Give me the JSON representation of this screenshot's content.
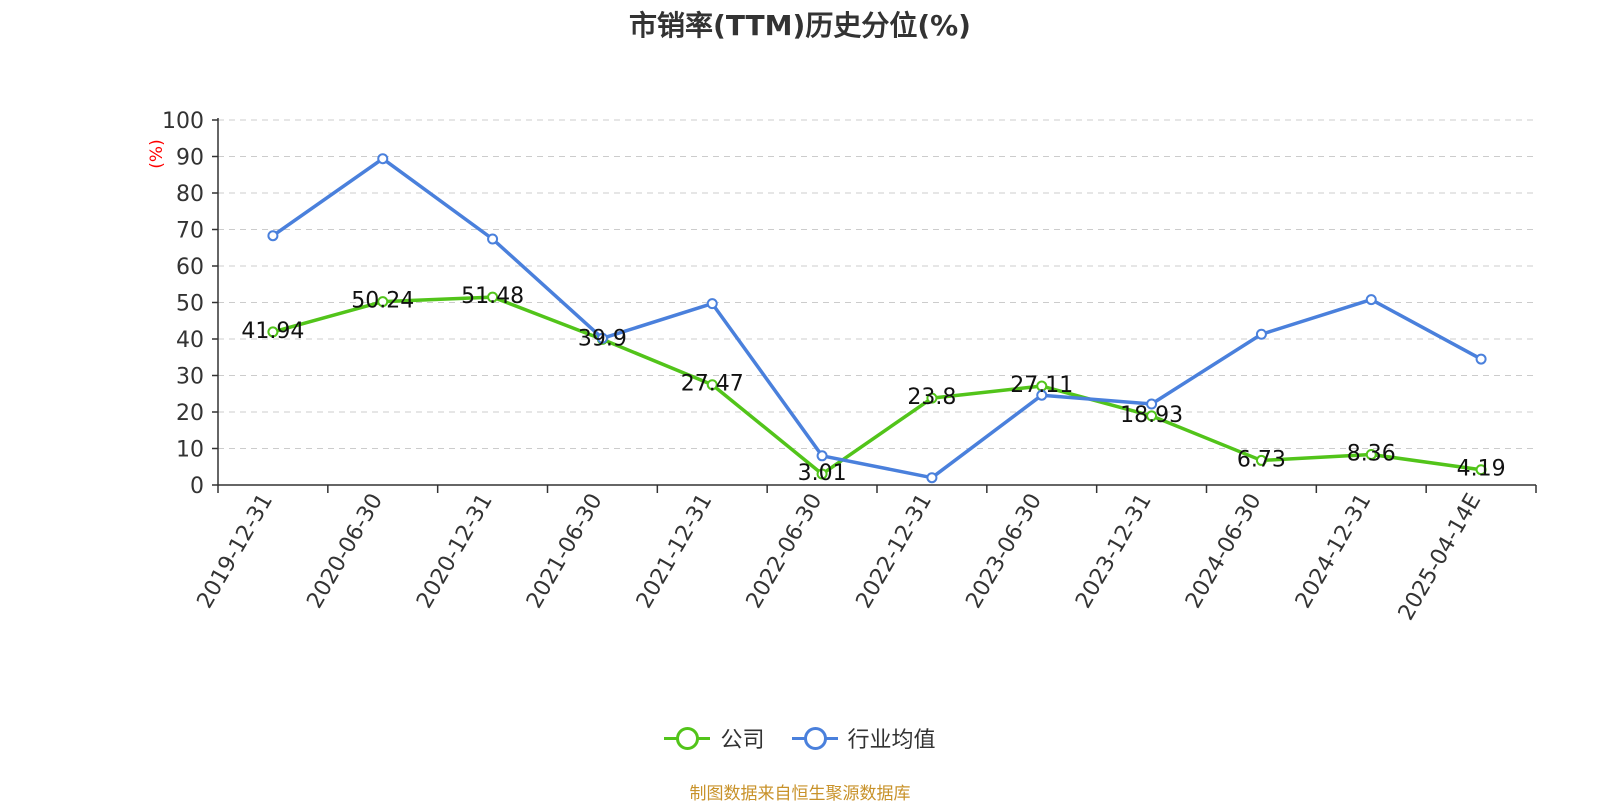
{
  "title": "市销率(TTM)历史分位(%)",
  "footer": "制图数据来自恒生聚源数据库",
  "colors": {
    "company": "#52c41a",
    "industry": "#4a80dc",
    "unit_label": "#ff0000",
    "footer": "#c8922a"
  },
  "chart_data": {
    "type": "line",
    "title": "市销率(TTM)历史分位(%)",
    "ylabel": "(%)",
    "xlabel": "",
    "ylim": [
      0,
      100
    ],
    "yticks": [
      0,
      10,
      20,
      30,
      40,
      50,
      60,
      70,
      80,
      90,
      100
    ],
    "grid": true,
    "legend_position": "bottom",
    "categories": [
      "2019-12-31",
      "2020-06-30",
      "2020-12-31",
      "2021-06-30",
      "2021-12-31",
      "2022-06-30",
      "2022-12-31",
      "2023-06-30",
      "2023-12-31",
      "2024-06-30",
      "2024-12-31",
      "2025-04-14E"
    ],
    "series": [
      {
        "name": "公司",
        "color": "#52c41a",
        "values": [
          41.94,
          50.24,
          51.48,
          39.9,
          27.47,
          3.01,
          23.8,
          27.11,
          18.93,
          6.73,
          8.36,
          4.19
        ],
        "labels": [
          "41.94",
          "50.24",
          "51.48",
          "39.9",
          "27.47",
          "3.01",
          "23.8",
          "27.11",
          "18.93",
          "6.73",
          "8.36",
          "4.19"
        ],
        "show_labels": true
      },
      {
        "name": "行业均值",
        "color": "#4a80dc",
        "values": [
          68.3,
          89.4,
          67.4,
          40.2,
          49.7,
          8.0,
          2.0,
          24.6,
          22.2,
          41.3,
          50.8,
          34.5
        ],
        "show_labels": false
      }
    ]
  }
}
